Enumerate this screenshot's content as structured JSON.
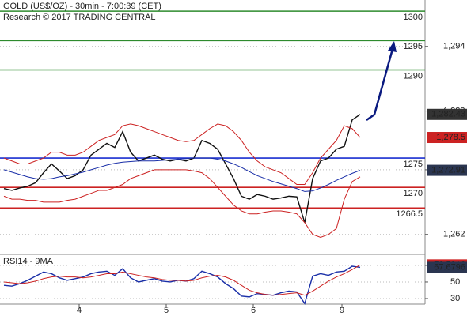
{
  "chart_data": {
    "type": "line",
    "title": "GOLD (US$/OZ) - 30min - 7:00:39 (CET)",
    "subtitle": "Research © 2017 TRADING CENTRAL",
    "xlim": [
      -0.5,
      53.2
    ],
    "xticks": [
      {
        "value": 9.5,
        "label": "4"
      },
      {
        "value": 20.5,
        "label": "5"
      },
      {
        "value": 31.5,
        "label": "6"
      },
      {
        "value": 42.7,
        "label": "9"
      }
    ],
    "ylim": [
      1258.6,
      1301.9
    ],
    "yticks": [
      {
        "value": 1294,
        "label": "1,294"
      },
      {
        "value": 1283,
        "label": "1,283"
      },
      {
        "value": 1273,
        "label": "1,273"
      },
      {
        "value": 1262,
        "label": "1,262"
      }
    ],
    "grid": true,
    "series": [
      {
        "color": "#111111",
        "values": [
          1269.8,
          1269.5,
          1269.9,
          1270.2,
          1270.8,
          1272.5,
          1274.0,
          1272.8,
          1271.5,
          1272.0,
          1273.0,
          1275.5,
          1276.5,
          1277.5,
          1276.8,
          1279.5,
          1276.0,
          1274.5,
          1275.0,
          1275.5,
          1274.8,
          1274.5,
          1274.8,
          1274.5,
          1275.0,
          1278.0,
          1277.5,
          1276.5,
          1274.0,
          1271.5,
          1268.5,
          1268.0,
          1268.8,
          1268.5,
          1268.0,
          1268.2,
          1268.5,
          1268.4,
          1264.0,
          1271.5,
          1274.5,
          1275.0,
          1276.5,
          1277.0,
          1281.5,
          1282.43
        ]
      },
      {
        "color": "#cc2222",
        "values": [
          1275.0,
          1274.5,
          1274.0,
          1274.0,
          1274.5,
          1275.0,
          1276.0,
          1276.0,
          1275.5,
          1275.5,
          1276.0,
          1277.0,
          1278.0,
          1278.5,
          1279.0,
          1280.5,
          1280.8,
          1280.5,
          1280.0,
          1279.5,
          1279.0,
          1278.5,
          1278.0,
          1277.8,
          1278.0,
          1279.0,
          1280.0,
          1280.8,
          1280.5,
          1279.5,
          1278.0,
          1276.0,
          1274.5,
          1273.5,
          1273.0,
          1272.5,
          1271.5,
          1270.5,
          1270.5,
          1272.5,
          1275.0,
          1276.5,
          1278.0,
          1280.5,
          1280.0,
          1278.5
        ]
      },
      {
        "color": "#cc2222",
        "values": [
          1268.5,
          1268.0,
          1268.0,
          1267.8,
          1267.8,
          1267.5,
          1267.5,
          1267.5,
          1267.8,
          1268.0,
          1268.5,
          1269.0,
          1269.5,
          1269.5,
          1270.0,
          1270.5,
          1271.5,
          1272.0,
          1272.5,
          1273.0,
          1273.0,
          1273.0,
          1273.0,
          1273.0,
          1272.8,
          1272.5,
          1271.5,
          1270.0,
          1268.5,
          1267.0,
          1266.0,
          1265.5,
          1265.5,
          1265.8,
          1266.0,
          1266.0,
          1265.8,
          1265.5,
          1264.0,
          1262.0,
          1261.5,
          1262.0,
          1263.0,
          1268.0,
          1271.0,
          1271.8
        ]
      },
      {
        "color": "#1a2fa8",
        "values": [
          1273.0,
          1272.6,
          1272.2,
          1271.8,
          1271.5,
          1271.4,
          1271.5,
          1271.8,
          1272.0,
          1272.3,
          1272.6,
          1273.0,
          1273.4,
          1273.8,
          1274.1,
          1274.3,
          1274.4,
          1274.5,
          1274.5,
          1274.5,
          1274.6,
          1274.7,
          1274.8,
          1274.9,
          1275.0,
          1275.0,
          1275.0,
          1274.8,
          1274.5,
          1274.0,
          1273.4,
          1272.7,
          1272.0,
          1271.5,
          1271.0,
          1270.6,
          1270.2,
          1269.8,
          1269.3,
          1269.4,
          1269.9,
          1270.5,
          1271.2,
          1271.8,
          1272.4,
          1272.91
        ]
      }
    ],
    "levels": [
      {
        "value": 1300,
        "color": "#2e8b2e"
      },
      {
        "value": 1295,
        "color": "#2e8b2e"
      },
      {
        "value": 1290,
        "color": "#2e8b2e"
      },
      {
        "value": 1275,
        "color": "#1a2fd0"
      },
      {
        "value": 1270,
        "color": "#cc2222"
      },
      {
        "value": 1266.5,
        "color": "#cc2222"
      }
    ],
    "price_labels": [
      {
        "value": 1282.43,
        "label": "1,282.43",
        "color": "#333333"
      },
      {
        "value": 1278.5,
        "label": "1,278.5",
        "color": "#cc2222"
      },
      {
        "value": 1272.91,
        "label": "1,272.91",
        "color": "#2a3550"
      }
    ],
    "rsi": {
      "title": "RSI14 - 9MA",
      "ylim": [
        23.3,
        83.3
      ],
      "yticks": [
        70,
        50,
        30
      ],
      "series": [
        {
          "color": "#1a2fa8",
          "values": [
            46,
            45,
            48,
            52,
            57,
            62,
            60,
            55,
            52,
            54,
            56,
            60,
            62,
            63,
            58,
            66,
            55,
            50,
            52,
            54,
            51,
            50,
            52,
            51,
            54,
            63,
            60,
            56,
            48,
            42,
            33,
            32,
            36,
            35,
            34,
            37,
            39,
            38,
            24,
            57,
            60,
            58,
            62,
            63,
            69,
            67.6796
          ]
        },
        {
          "color": "#cc2222",
          "values": [
            50,
            49,
            48,
            49,
            51,
            54,
            56,
            57,
            56,
            56,
            55,
            56,
            58,
            60,
            60,
            62,
            60,
            58,
            56,
            55,
            53,
            52,
            52,
            51,
            52,
            55,
            57,
            58,
            56,
            52,
            46,
            40,
            37,
            35,
            34,
            35,
            36,
            37,
            34,
            39,
            45,
            51,
            56,
            60,
            65,
            70.5916
          ]
        }
      ],
      "labels": [
        {
          "value": 70.5916,
          "label": "70.5916",
          "color": "#cc2222"
        },
        {
          "value": 67.6796,
          "label": "67.6796",
          "color": "#2a3550"
        }
      ]
    }
  }
}
